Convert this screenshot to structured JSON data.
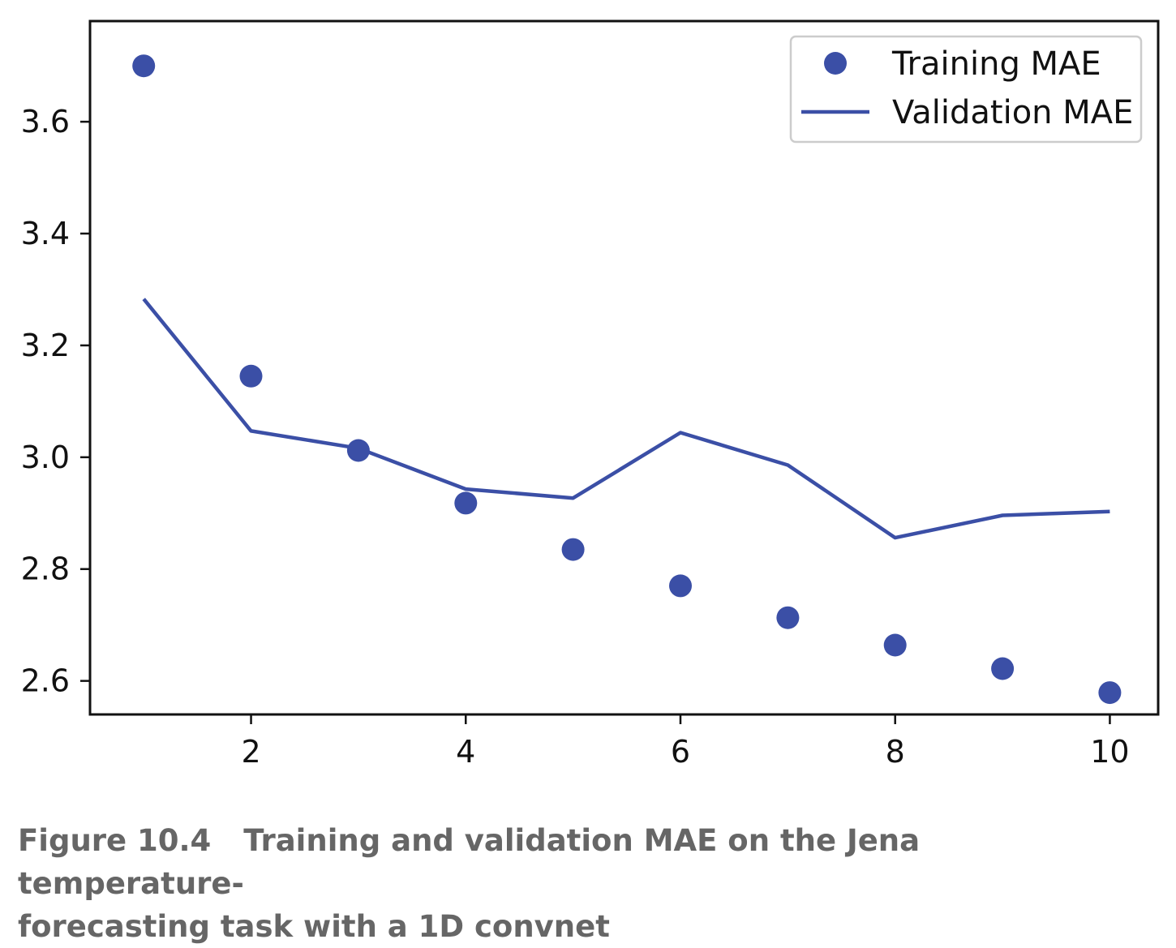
{
  "chart_data": {
    "type": "scatter",
    "title": "",
    "xlabel": "",
    "ylabel": "",
    "xlim": [
      0.5,
      10.45
    ],
    "ylim": [
      2.54,
      3.78
    ],
    "x_ticks": [
      2,
      4,
      6,
      8,
      10
    ],
    "y_ticks": [
      2.6,
      2.8,
      3.0,
      3.2,
      3.4,
      3.6
    ],
    "x_tick_labels": [
      "2",
      "4",
      "6",
      "8",
      "10"
    ],
    "y_tick_labels": [
      "2.6",
      "2.8",
      "3.0",
      "3.2",
      "3.4",
      "3.6"
    ],
    "x": [
      1,
      2,
      3,
      4,
      5,
      6,
      7,
      8,
      9,
      10
    ],
    "series": [
      {
        "name": "Training MAE",
        "type": "scatter",
        "color": "#3b4fa6",
        "values": [
          3.7,
          3.145,
          3.012,
          2.918,
          2.835,
          2.77,
          2.713,
          2.664,
          2.622,
          2.579
        ]
      },
      {
        "name": "Validation MAE",
        "type": "line",
        "color": "#3b4fa6",
        "values": [
          3.283,
          3.047,
          3.016,
          2.943,
          2.927,
          3.044,
          2.986,
          2.856,
          2.896,
          2.903
        ]
      }
    ],
    "grid": false,
    "legend_position": "top-right"
  },
  "caption": {
    "figure_number": "Figure 10.4",
    "line1": "Training and validation MAE on the Jena temperature-",
    "line2": "forecasting task with a 1D convnet"
  }
}
